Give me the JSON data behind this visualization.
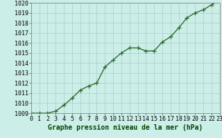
{
  "x": [
    0,
    1,
    2,
    3,
    4,
    5,
    6,
    7,
    8,
    9,
    10,
    11,
    12,
    13,
    14,
    15,
    16,
    17,
    18,
    19,
    20,
    21,
    22,
    23
  ],
  "y": [
    1009.0,
    1009.0,
    1009.0,
    1009.2,
    1009.8,
    1010.5,
    1011.3,
    1011.7,
    1012.0,
    1013.6,
    1014.3,
    1015.0,
    1015.5,
    1015.5,
    1015.2,
    1015.2,
    1016.1,
    1016.6,
    1017.5,
    1018.5,
    1019.0,
    1019.3,
    1019.8,
    1020.3
  ],
  "line_color": "#2d6a2d",
  "marker": "+",
  "marker_size": 4,
  "linewidth": 1.0,
  "bg_color": "#cceee8",
  "grid_color": "#aacccc",
  "xlabel": "Graphe pression niveau de la mer (hPa)",
  "xlabel_fontsize": 7,
  "tick_fontsize": 6,
  "ylim": [
    1009,
    1020
  ],
  "xlim": [
    0,
    23
  ],
  "yticks": [
    1009,
    1010,
    1011,
    1012,
    1013,
    1014,
    1015,
    1016,
    1017,
    1018,
    1019,
    1020
  ],
  "xticks": [
    0,
    1,
    2,
    3,
    4,
    5,
    6,
    7,
    8,
    9,
    10,
    11,
    12,
    13,
    14,
    15,
    16,
    17,
    18,
    19,
    20,
    21,
    22,
    23
  ]
}
